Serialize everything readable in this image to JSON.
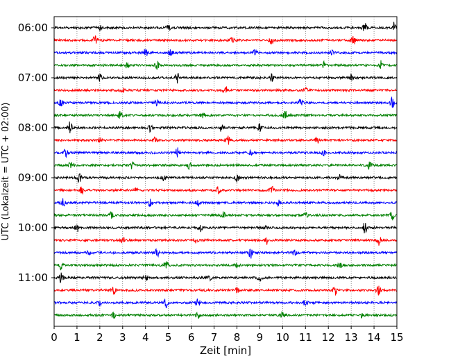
{
  "chart_data": {
    "type": "line",
    "title": "",
    "xlabel": "Zeit  [min]",
    "ylabel": "UTC (Lokalzeit = UTC + 02:00)",
    "xlim": [
      0,
      15
    ],
    "x_ticks": [
      "0",
      "1",
      "2",
      "3",
      "4",
      "5",
      "6",
      "7",
      "8",
      "9",
      "10",
      "11",
      "12",
      "13",
      "14",
      "15"
    ],
    "y_ticks": [
      "06:00",
      "07:00",
      "08:00",
      "09:00",
      "10:00",
      "11:00"
    ],
    "grid": "vertical dotted",
    "colors": [
      "#000000",
      "#ff0000",
      "#0000ff",
      "#008000"
    ],
    "row_interval_min": 15,
    "first_row_time": "06:00",
    "series": [
      {
        "time": "06:00",
        "color": "#000000",
        "events": [
          [
            5.0,
            1.0
          ],
          [
            13.6,
            1.6
          ],
          [
            14.9,
            1.8
          ],
          [
            2.0,
            0.7
          ]
        ]
      },
      {
        "time": "06:15",
        "color": "#ff0000",
        "events": [
          [
            1.8,
            1.6
          ],
          [
            9.5,
            1.4
          ],
          [
            13.1,
            1.6
          ],
          [
            7.8,
            0.8
          ]
        ]
      },
      {
        "time": "06:30",
        "color": "#0000ff",
        "events": [
          [
            4.0,
            1.2
          ],
          [
            5.1,
            1.1
          ],
          [
            8.8,
            1.0
          ],
          [
            12.2,
            1.0
          ]
        ]
      },
      {
        "time": "06:45",
        "color": "#008000",
        "events": [
          [
            4.5,
            1.3
          ],
          [
            11.8,
            1.0
          ],
          [
            14.3,
            1.4
          ],
          [
            3.2,
            0.8
          ]
        ]
      },
      {
        "time": "07:00",
        "color": "#000000",
        "events": [
          [
            2.0,
            1.0
          ],
          [
            5.4,
            1.6
          ],
          [
            9.5,
            1.2
          ],
          [
            13.0,
            0.8
          ]
        ]
      },
      {
        "time": "07:15",
        "color": "#ff0000",
        "events": [
          [
            7.5,
            1.2
          ],
          [
            11.0,
            0.8
          ],
          [
            3.0,
            0.6
          ]
        ]
      },
      {
        "time": "07:30",
        "color": "#0000ff",
        "events": [
          [
            0.3,
            1.2
          ],
          [
            10.8,
            1.5
          ],
          [
            14.8,
            1.5
          ],
          [
            4.5,
            0.9
          ]
        ]
      },
      {
        "time": "07:45",
        "color": "#008000",
        "events": [
          [
            2.9,
            1.6
          ],
          [
            10.1,
            1.5
          ],
          [
            6.5,
            0.9
          ]
        ]
      },
      {
        "time": "08:00",
        "color": "#000000",
        "events": [
          [
            0.7,
            1.8
          ],
          [
            4.2,
            1.2
          ],
          [
            7.3,
            1.2
          ],
          [
            9.0,
            1.3
          ]
        ]
      },
      {
        "time": "08:15",
        "color": "#ff0000",
        "events": [
          [
            4.4,
            1.2
          ],
          [
            7.6,
            1.3
          ],
          [
            11.5,
            1.0
          ],
          [
            2.0,
            0.7
          ]
        ]
      },
      {
        "time": "08:30",
        "color": "#0000ff",
        "events": [
          [
            0.5,
            1.3
          ],
          [
            5.4,
            1.4
          ],
          [
            8.6,
            1.0
          ],
          [
            11.8,
            1.0
          ]
        ]
      },
      {
        "time": "08:45",
        "color": "#008000",
        "events": [
          [
            0.7,
            1.4
          ],
          [
            3.4,
            1.3
          ],
          [
            5.9,
            1.0
          ],
          [
            13.8,
            1.5
          ]
        ]
      },
      {
        "time": "09:00",
        "color": "#000000",
        "events": [
          [
            1.1,
            1.4
          ],
          [
            4.8,
            1.3
          ],
          [
            8.0,
            1.3
          ],
          [
            12.5,
            0.9
          ]
        ]
      },
      {
        "time": "09:15",
        "color": "#ff0000",
        "events": [
          [
            1.2,
            1.3
          ],
          [
            7.2,
            1.2
          ],
          [
            9.5,
            1.5
          ],
          [
            3.6,
            0.8
          ]
        ]
      },
      {
        "time": "09:30",
        "color": "#0000ff",
        "events": [
          [
            0.4,
            1.2
          ],
          [
            4.2,
            1.3
          ],
          [
            9.8,
            1.0
          ],
          [
            6.3,
            0.9
          ]
        ]
      },
      {
        "time": "09:45",
        "color": "#008000",
        "events": [
          [
            2.5,
            1.0
          ],
          [
            7.4,
            1.0
          ],
          [
            14.8,
            1.4
          ],
          [
            11.0,
            0.8
          ]
        ]
      },
      {
        "time": "10:00",
        "color": "#000000",
        "events": [
          [
            1.0,
            1.2
          ],
          [
            6.4,
            1.2
          ],
          [
            13.6,
            1.8
          ],
          [
            9.2,
            0.8
          ]
        ]
      },
      {
        "time": "10:15",
        "color": "#ff0000",
        "events": [
          [
            3.0,
            1.0
          ],
          [
            9.3,
            1.6
          ],
          [
            14.2,
            1.5
          ],
          [
            6.2,
            0.8
          ]
        ]
      },
      {
        "time": "10:30",
        "color": "#0000ff",
        "events": [
          [
            4.5,
            1.3
          ],
          [
            8.6,
            1.6
          ],
          [
            10.5,
            1.0
          ],
          [
            1.5,
            0.7
          ]
        ]
      },
      {
        "time": "10:45",
        "color": "#008000",
        "events": [
          [
            0.3,
            1.2
          ],
          [
            4.9,
            1.6
          ],
          [
            12.5,
            1.0
          ],
          [
            8.0,
            0.7
          ]
        ]
      },
      {
        "time": "11:00",
        "color": "#000000",
        "events": [
          [
            0.3,
            1.6
          ],
          [
            4.0,
            1.2
          ],
          [
            9.0,
            1.3
          ],
          [
            6.8,
            0.8
          ]
        ]
      },
      {
        "time": "11:15",
        "color": "#ff0000",
        "events": [
          [
            2.6,
            1.3
          ],
          [
            12.3,
            2.2
          ],
          [
            14.2,
            1.8
          ],
          [
            8.0,
            0.8
          ]
        ]
      },
      {
        "time": "11:30",
        "color": "#0000ff",
        "events": [
          [
            4.9,
            1.4
          ],
          [
            6.3,
            1.1
          ],
          [
            11.0,
            0.9
          ],
          [
            2.0,
            0.7
          ]
        ]
      },
      {
        "time": "11:45",
        "color": "#008000",
        "events": [
          [
            2.6,
            0.9
          ],
          [
            6.3,
            1.1
          ],
          [
            10.0,
            0.9
          ],
          [
            13.5,
            0.8
          ]
        ]
      }
    ]
  }
}
